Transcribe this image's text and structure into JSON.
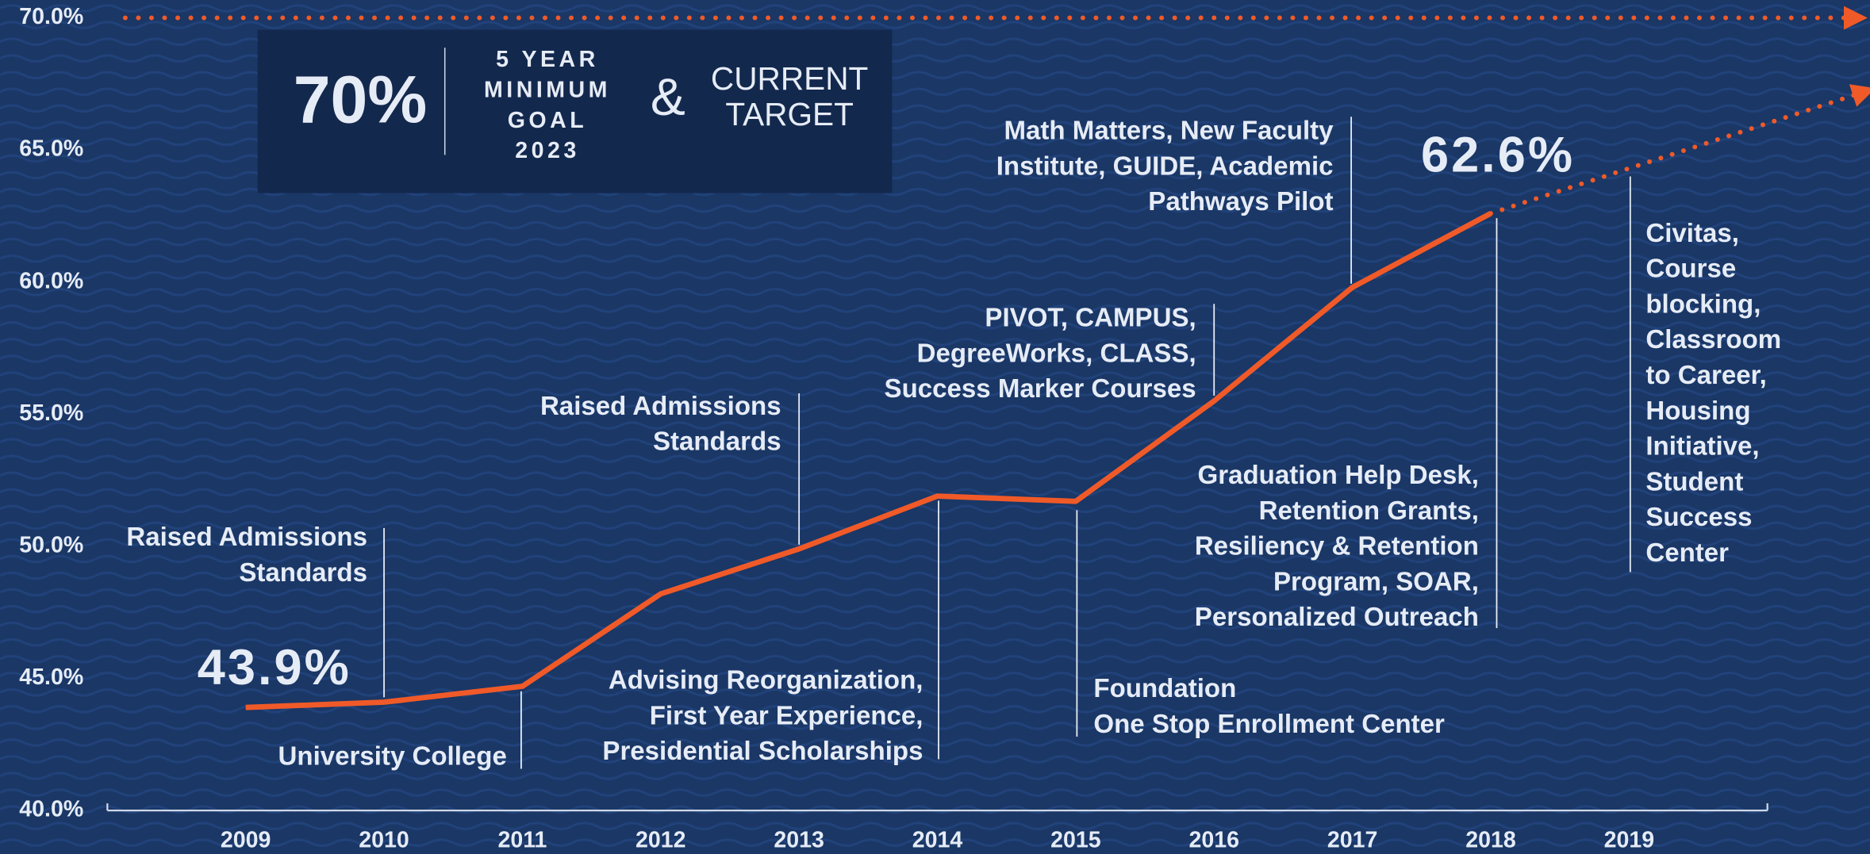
{
  "chart_data": {
    "type": "line",
    "x": [
      2009,
      2010,
      2011,
      2012,
      2013,
      2014,
      2015,
      2016,
      2017,
      2018,
      2019
    ],
    "xlim": [
      2008,
      2020
    ],
    "xticks": [
      2009,
      2010,
      2011,
      2012,
      2013,
      2014,
      2015,
      2016,
      2017,
      2018,
      2019
    ],
    "ylim": [
      40,
      70
    ],
    "yticks": [
      {
        "value": 40,
        "label": "40.0%"
      },
      {
        "value": 45,
        "label": "45.0%"
      },
      {
        "value": 50,
        "label": "50.0%"
      },
      {
        "value": 55,
        "label": "55.0%"
      },
      {
        "value": 60,
        "label": "60.0%"
      },
      {
        "value": 65,
        "label": "65.0%"
      },
      {
        "value": 70,
        "label": "70.0%"
      }
    ],
    "series": [
      {
        "color": "#f05a28",
        "values": [
          43.9,
          44.1,
          44.7,
          48.2,
          49.9,
          51.9,
          51.7,
          55.5,
          59.8,
          62.6,
          null
        ],
        "value_labels": [
          "43.9%",
          null,
          null,
          null,
          null,
          null,
          null,
          null,
          null,
          "62.6%",
          null
        ]
      }
    ],
    "projection": {
      "color": "#f05a28",
      "x": [
        2018,
        2020.7
      ],
      "values": [
        62.6,
        67.2
      ]
    },
    "goal_line": {
      "color": "#f05a28",
      "value": 70
    },
    "goal_box": {
      "big": "70%",
      "small": [
        "5 YEAR",
        "MINIMUM",
        "GOAL",
        "2023"
      ],
      "amp": "&",
      "right": [
        "CURRENT",
        "TARGET"
      ]
    },
    "annotations": [
      {
        "lines": [
          "Raised Admissions",
          "Standards"
        ]
      },
      {
        "lines": [
          "University College"
        ]
      },
      {
        "lines": [
          "Raised Admissions",
          "Standards"
        ]
      },
      {
        "lines": [
          "Advising Reorganization,",
          "First Year Experience,",
          "Presidential Scholarships"
        ]
      },
      {
        "lines": [
          "PIVOT, CAMPUS,",
          "DegreeWorks, CLASS,",
          "Success Marker Courses"
        ]
      },
      {
        "lines": [
          "Math Matters, New Faculty",
          "Institute, GUIDE, Academic",
          "Pathways Pilot"
        ]
      },
      {
        "lines": [
          "Foundation",
          "One Stop Enrollment Center"
        ]
      },
      {
        "lines": [
          "Graduation Help Desk,",
          "Retention Grants,",
          "Resiliency & Retention",
          "Program, SOAR,",
          "Personalized Outreach"
        ]
      },
      {
        "lines": [
          "Civitas,",
          "Course",
          "blocking,",
          "Classroom",
          "to Career,",
          "Housing",
          "Initiative,",
          "Student",
          "Success",
          "Center"
        ]
      }
    ]
  }
}
